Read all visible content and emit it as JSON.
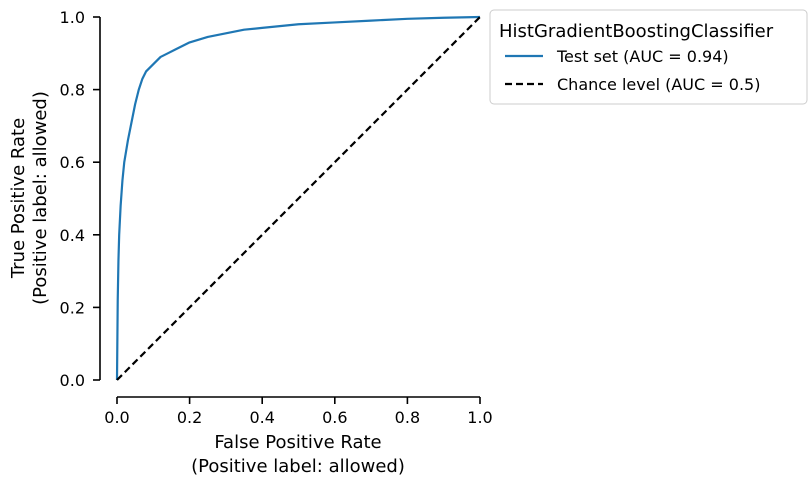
{
  "chart_data": {
    "type": "line",
    "xlabel": [
      "False Positive Rate",
      "(Positive label: allowed)"
    ],
    "ylabel": [
      "True Positive Rate",
      "(Positive label: allowed)"
    ],
    "xlim": [
      0.0,
      1.0
    ],
    "ylim": [
      0.0,
      1.0
    ],
    "xticks": [
      "0.0",
      "0.2",
      "0.4",
      "0.6",
      "0.8",
      "1.0"
    ],
    "yticks": [
      "0.0",
      "0.2",
      "0.4",
      "0.6",
      "0.8",
      "1.0"
    ],
    "grid": false,
    "legend": {
      "title": "HistGradientBoostingClassifier",
      "placement": "outside upper right"
    },
    "series": [
      {
        "name": "Test set (AUC = 0.94)",
        "color": "#1f77b4",
        "style": "solid",
        "x": [
          0.0,
          0.002,
          0.004,
          0.006,
          0.01,
          0.015,
          0.02,
          0.03,
          0.04,
          0.05,
          0.06,
          0.07,
          0.08,
          0.09,
          0.1,
          0.12,
          0.14,
          0.16,
          0.18,
          0.2,
          0.25,
          0.3,
          0.35,
          0.4,
          0.5,
          0.6,
          0.7,
          0.8,
          0.9,
          1.0
        ],
        "y": [
          0.0,
          0.22,
          0.33,
          0.4,
          0.48,
          0.55,
          0.6,
          0.66,
          0.71,
          0.76,
          0.8,
          0.83,
          0.85,
          0.86,
          0.87,
          0.89,
          0.9,
          0.91,
          0.92,
          0.93,
          0.945,
          0.955,
          0.965,
          0.97,
          0.98,
          0.985,
          0.99,
          0.995,
          0.998,
          1.0
        ]
      },
      {
        "name": "Chance level (AUC = 0.5)",
        "color": "#000000",
        "style": "dashed",
        "x": [
          0.0,
          1.0
        ],
        "y": [
          0.0,
          1.0
        ]
      }
    ]
  }
}
